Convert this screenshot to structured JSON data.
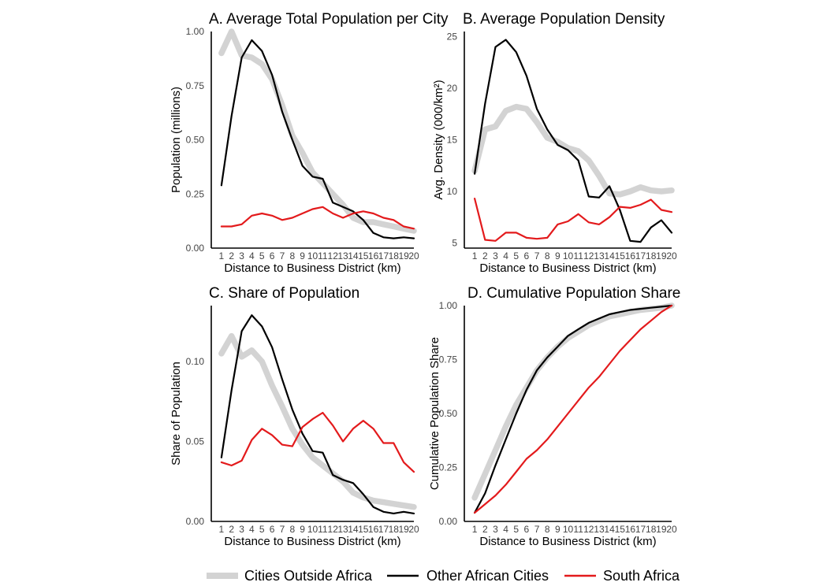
{
  "legend": {
    "entries": [
      {
        "label": "Cities Outside Africa",
        "color": "#d3d3d3"
      },
      {
        "label": "Other African Cities",
        "color": "#000000"
      },
      {
        "label": "South Africa",
        "color": "#e31a1c"
      }
    ]
  },
  "chart_data": [
    {
      "type": "line",
      "title": "A. Average Total Population per City",
      "xlabel": "Distance to Business District (km)",
      "ylabel": "Population (millions)",
      "xlim": [
        0,
        20
      ],
      "ylim": [
        0,
        1.0
      ],
      "xticks": [
        1,
        2,
        3,
        4,
        5,
        6,
        7,
        8,
        9,
        10,
        11,
        12,
        13,
        14,
        15,
        16,
        17,
        18,
        19,
        20
      ],
      "yticks": [
        0.0,
        0.25,
        0.5,
        0.75,
        1.0
      ],
      "ytick_labels": [
        "0.00",
        "0.25",
        "0.50",
        "0.75",
        "1.00"
      ],
      "x": [
        1,
        2,
        3,
        4,
        5,
        6,
        7,
        8,
        9,
        10,
        11,
        12,
        13,
        14,
        15,
        16,
        17,
        18,
        19,
        20
      ],
      "series": [
        {
          "name": "Cities Outside Africa",
          "values": [
            0.9,
            1.0,
            0.89,
            0.88,
            0.85,
            0.78,
            0.66,
            0.52,
            0.44,
            0.35,
            0.3,
            0.25,
            0.2,
            0.14,
            0.12,
            0.12,
            0.11,
            0.1,
            0.09,
            0.08
          ]
        },
        {
          "name": "Other African Cities",
          "values": [
            0.29,
            0.61,
            0.88,
            0.96,
            0.91,
            0.8,
            0.63,
            0.5,
            0.38,
            0.33,
            0.32,
            0.21,
            0.19,
            0.17,
            0.13,
            0.07,
            0.05,
            0.045,
            0.05,
            0.045
          ]
        },
        {
          "name": "South Africa",
          "values": [
            0.1,
            0.1,
            0.11,
            0.15,
            0.16,
            0.15,
            0.13,
            0.14,
            0.16,
            0.18,
            0.19,
            0.16,
            0.14,
            0.16,
            0.17,
            0.16,
            0.14,
            0.13,
            0.1,
            0.09
          ]
        }
      ]
    },
    {
      "type": "line",
      "title": "B. Average Population Density",
      "xlabel": "Distance to Business District (km)",
      "ylabel": "Avg. Density (000/km²)",
      "xlim": [
        0,
        20
      ],
      "ylim": [
        4.5,
        25.5
      ],
      "xticks": [
        1,
        2,
        3,
        4,
        5,
        6,
        7,
        8,
        9,
        10,
        11,
        12,
        13,
        14,
        15,
        16,
        17,
        18,
        19,
        20
      ],
      "yticks": [
        5,
        10,
        15,
        20,
        25
      ],
      "ytick_labels": [
        "5",
        "10",
        "15",
        "20",
        "25"
      ],
      "x": [
        1,
        2,
        3,
        4,
        5,
        6,
        7,
        8,
        9,
        10,
        11,
        12,
        13,
        14,
        15,
        16,
        17,
        18,
        19,
        20
      ],
      "series": [
        {
          "name": "Cities Outside Africa",
          "values": [
            12.0,
            16.0,
            16.3,
            17.8,
            18.2,
            18.0,
            16.7,
            15.2,
            14.8,
            14.2,
            13.9,
            13.0,
            11.5,
            9.8,
            9.7,
            10.0,
            10.4,
            10.1,
            10.0,
            10.1
          ]
        },
        {
          "name": "Other African Cities",
          "values": [
            11.7,
            18.5,
            24.0,
            24.7,
            23.5,
            21.2,
            18.0,
            16.0,
            14.5,
            14.0,
            13.0,
            9.5,
            9.4,
            10.5,
            8.2,
            5.2,
            5.1,
            6.5,
            7.2,
            6.0
          ]
        },
        {
          "name": "South Africa",
          "values": [
            9.3,
            5.3,
            5.2,
            6.0,
            6.0,
            5.5,
            5.4,
            5.5,
            6.8,
            7.1,
            7.8,
            7.0,
            6.8,
            7.5,
            8.5,
            8.4,
            8.7,
            9.2,
            8.2,
            8.0
          ]
        }
      ]
    },
    {
      "type": "line",
      "title": "C. Share of Population",
      "xlabel": "Distance to Business District (km)",
      "ylabel": "Share of Population",
      "xlim": [
        0,
        20
      ],
      "ylim": [
        0,
        0.135
      ],
      "xticks": [
        1,
        2,
        3,
        4,
        5,
        6,
        7,
        8,
        9,
        10,
        11,
        12,
        13,
        14,
        15,
        16,
        17,
        18,
        19,
        20
      ],
      "yticks": [
        0.0,
        0.05,
        0.1
      ],
      "ytick_labels": [
        "0.00",
        "0.05",
        "0.10"
      ],
      "x": [
        1,
        2,
        3,
        4,
        5,
        6,
        7,
        8,
        9,
        10,
        11,
        12,
        13,
        14,
        15,
        16,
        17,
        18,
        19,
        20
      ],
      "series": [
        {
          "name": "Cities Outside Africa",
          "values": [
            0.105,
            0.116,
            0.103,
            0.107,
            0.1,
            0.085,
            0.072,
            0.058,
            0.048,
            0.04,
            0.035,
            0.03,
            0.025,
            0.018,
            0.015,
            0.013,
            0.012,
            0.011,
            0.01,
            0.009
          ]
        },
        {
          "name": "Other African Cities",
          "values": [
            0.04,
            0.082,
            0.119,
            0.129,
            0.122,
            0.109,
            0.089,
            0.07,
            0.055,
            0.044,
            0.043,
            0.029,
            0.026,
            0.024,
            0.017,
            0.009,
            0.006,
            0.005,
            0.006,
            0.005
          ]
        },
        {
          "name": "South Africa",
          "values": [
            0.037,
            0.035,
            0.038,
            0.051,
            0.058,
            0.054,
            0.048,
            0.047,
            0.059,
            0.064,
            0.068,
            0.06,
            0.05,
            0.058,
            0.063,
            0.058,
            0.049,
            0.049,
            0.037,
            0.031
          ]
        }
      ]
    },
    {
      "type": "line",
      "title": "D. Cumulative Population Share",
      "xlabel": "Distance to Business District (km)",
      "ylabel": "Cumulative Population Share",
      "xlim": [
        0,
        20
      ],
      "ylim": [
        0,
        1.0
      ],
      "xticks": [
        1,
        2,
        3,
        4,
        5,
        6,
        7,
        8,
        9,
        10,
        11,
        12,
        13,
        14,
        15,
        16,
        17,
        18,
        19,
        20
      ],
      "yticks": [
        0.0,
        0.25,
        0.5,
        0.75,
        1.0
      ],
      "ytick_labels": [
        "0.00",
        "0.25",
        "0.50",
        "0.75",
        "1.00"
      ],
      "x": [
        1,
        2,
        3,
        4,
        5,
        6,
        7,
        8,
        9,
        10,
        11,
        12,
        13,
        14,
        15,
        16,
        17,
        18,
        19,
        20
      ],
      "series": [
        {
          "name": "Cities Outside Africa",
          "values": [
            0.11,
            0.22,
            0.33,
            0.44,
            0.54,
            0.62,
            0.7,
            0.76,
            0.81,
            0.85,
            0.88,
            0.91,
            0.93,
            0.95,
            0.96,
            0.97,
            0.98,
            0.985,
            0.99,
            1.0
          ]
        },
        {
          "name": "Other African Cities",
          "values": [
            0.04,
            0.13,
            0.26,
            0.38,
            0.5,
            0.61,
            0.7,
            0.76,
            0.81,
            0.86,
            0.89,
            0.92,
            0.94,
            0.96,
            0.97,
            0.98,
            0.985,
            0.99,
            0.995,
            1.0
          ]
        },
        {
          "name": "South Africa",
          "values": [
            0.04,
            0.08,
            0.12,
            0.17,
            0.23,
            0.29,
            0.33,
            0.38,
            0.44,
            0.5,
            0.56,
            0.62,
            0.67,
            0.73,
            0.79,
            0.84,
            0.89,
            0.93,
            0.97,
            1.0
          ]
        }
      ]
    }
  ]
}
